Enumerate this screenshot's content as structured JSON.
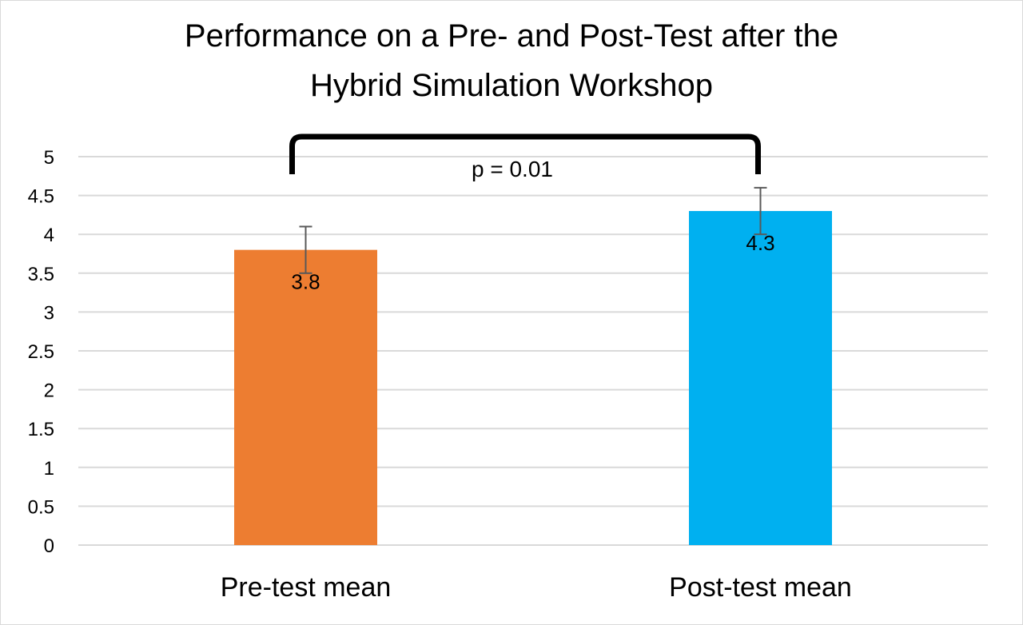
{
  "chart_data": {
    "type": "bar",
    "title_lines": [
      "Performance on a Pre- and Post-Test after the",
      "Hybrid Simulation Workshop"
    ],
    "categories": [
      "Pre-test mean",
      "Post-test mean"
    ],
    "values": [
      3.8,
      4.3
    ],
    "data_labels": [
      "3.8",
      "4.3"
    ],
    "error_bars": [
      0.3,
      0.3
    ],
    "colors": [
      "#ED7D31",
      "#00B0F0"
    ],
    "ylim": [
      0,
      5
    ],
    "yticks": [
      "0",
      "0.5",
      "1",
      "1.5",
      "2",
      "2.5",
      "3",
      "3.5",
      "4",
      "4.5",
      "5"
    ],
    "grid": true,
    "annotation": {
      "text": "p = 0.01",
      "between": [
        0,
        1
      ]
    },
    "xlabel": "",
    "ylabel": ""
  }
}
